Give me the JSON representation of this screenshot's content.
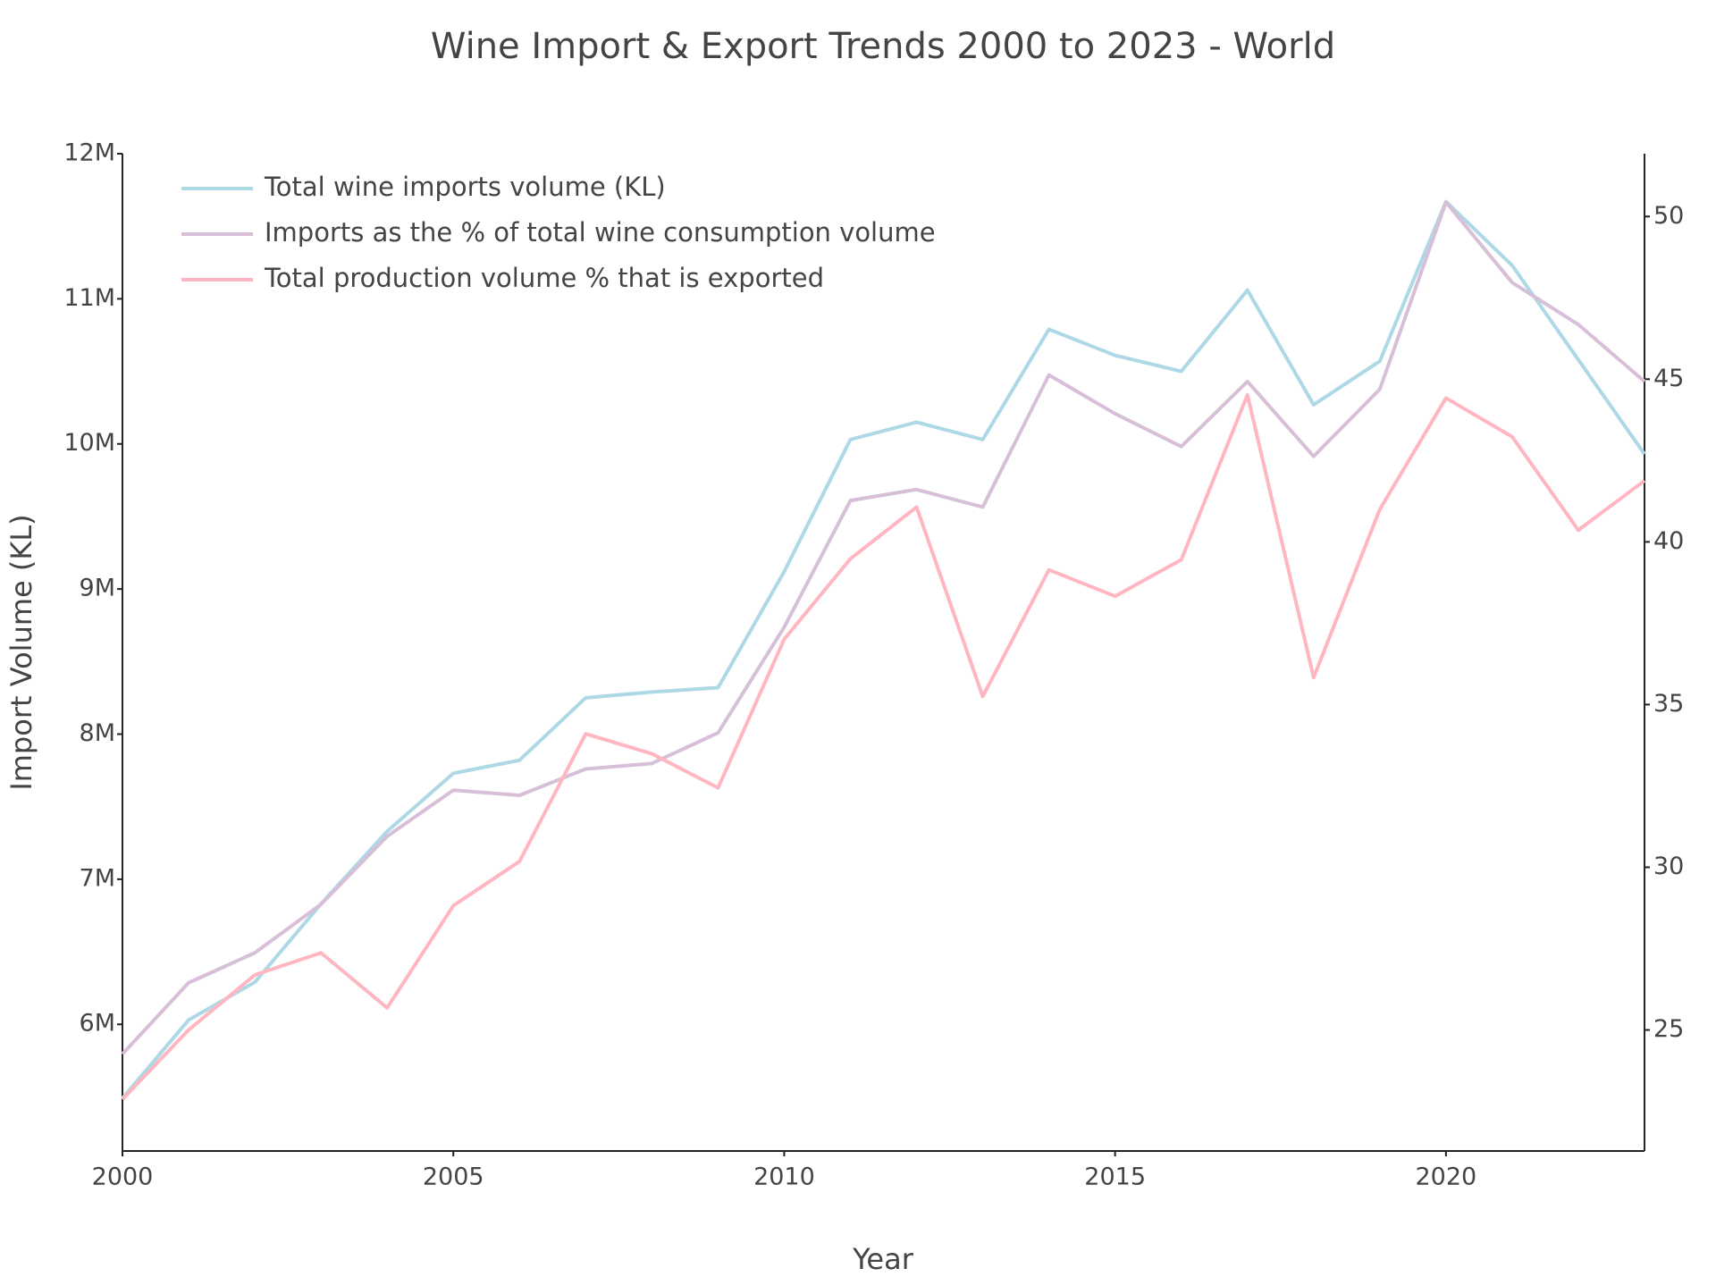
{
  "chart_data": {
    "type": "line",
    "title": "Wine Import & Export Trends 2000 to 2023 - World",
    "x_label": "Year",
    "y_label": "Import Volume (KL)",
    "x": [
      2000,
      2001,
      2002,
      2003,
      2004,
      2005,
      2006,
      2007,
      2008,
      2009,
      2010,
      2011,
      2012,
      2013,
      2014,
      2015,
      2016,
      2017,
      2018,
      2019,
      2020,
      2021,
      2022,
      2023
    ],
    "xlim": [
      2000,
      2023
    ],
    "xticks": [
      2000,
      2005,
      2010,
      2015,
      2020
    ],
    "ylim": [
      5127000,
      12000000
    ],
    "yticks": [
      {
        "value": 6000000,
        "label": "6M"
      },
      {
        "value": 7000000,
        "label": "7M"
      },
      {
        "value": 8000000,
        "label": "8M"
      },
      {
        "value": 9000000,
        "label": "9M"
      },
      {
        "value": 10000000,
        "label": "10M"
      },
      {
        "value": 11000000,
        "label": "11M"
      },
      {
        "value": 12000000,
        "label": "12M"
      }
    ],
    "y2lim": [
      21.28,
      51.93
    ],
    "y2ticks": [
      25,
      30,
      35,
      40,
      45,
      50
    ],
    "legend": "top-left",
    "series": [
      {
        "name": "Total wine imports volume (KL)",
        "color": "#add8e6",
        "values": [
          5490000,
          6030000,
          6290000,
          6830000,
          7330000,
          7730000,
          7820000,
          8250000,
          8290000,
          8320000,
          9120000,
          10030000,
          10150000,
          10030000,
          10790000,
          10610000,
          10500000,
          11060000,
          10270000,
          10570000,
          11670000,
          11230000,
          10580000,
          9930000
        ]
      },
      {
        "name": "Imports as the % of total wine consumption volume",
        "color": "#d8bfd8",
        "axis": "y2",
        "values": [
          24.26,
          26.45,
          27.37,
          28.86,
          30.95,
          32.37,
          32.21,
          33.02,
          33.19,
          34.13,
          37.38,
          41.27,
          41.61,
          41.07,
          45.13,
          43.94,
          42.93,
          44.93,
          42.63,
          44.69,
          50.44,
          47.97,
          46.68,
          44.93
        ]
      },
      {
        "name": "Total production volume % that is exported",
        "color": "#ffb6c1",
        "axis": "y2",
        "values": [
          22.87,
          25.0,
          26.69,
          27.37,
          25.68,
          28.82,
          30.18,
          34.1,
          33.49,
          32.44,
          37.01,
          39.48,
          41.07,
          35.25,
          39.14,
          38.33,
          39.45,
          44.52,
          35.83,
          41.0,
          44.42,
          43.23,
          40.36,
          41.88
        ]
      }
    ]
  }
}
